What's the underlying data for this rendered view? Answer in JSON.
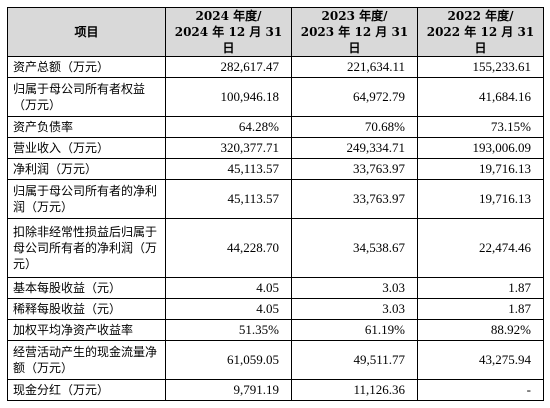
{
  "table": {
    "header": {
      "item": "项目",
      "col1_line1": "2024 年度/",
      "col1_line2": "2024 年 12 月 31 日",
      "col2_line1": "2023 年度/",
      "col2_line2": "2023 年 12 月 31 日",
      "col3_line1": "2022 年度/",
      "col3_line2": "2022 年 12 月 31 日"
    },
    "rows": [
      {
        "label": "资产总额（万元）",
        "v2024": "282,617.47",
        "v2023": "221,634.11",
        "v2022": "155,233.61"
      },
      {
        "label": "归属于母公司所有者权益（万元）",
        "v2024": "100,946.18",
        "v2023": "64,972.79",
        "v2022": "41,684.16"
      },
      {
        "label": "资产负债率",
        "v2024": "64.28%",
        "v2023": "70.68%",
        "v2022": "73.15%"
      },
      {
        "label": "营业收入（万元）",
        "v2024": "320,377.71",
        "v2023": "249,334.71",
        "v2022": "193,006.09"
      },
      {
        "label": "净利润（万元）",
        "v2024": "45,113.57",
        "v2023": "33,763.97",
        "v2022": "19,716.13"
      },
      {
        "label": "归属于母公司所有者的净利润（万元）",
        "v2024": "45,113.57",
        "v2023": "33,763.97",
        "v2022": "19,716.13"
      },
      {
        "label": "扣除非经常性损益后归属于母公司所有者的净利润（万元）",
        "v2024": "44,228.70",
        "v2023": "34,538.67",
        "v2022": "22,474.46"
      },
      {
        "label": "基本每股收益（元）",
        "v2024": "4.05",
        "v2023": "3.03",
        "v2022": "1.87"
      },
      {
        "label": "稀释每股收益（元）",
        "v2024": "4.05",
        "v2023": "3.03",
        "v2022": "1.87"
      },
      {
        "label": "加权平均净资产收益率",
        "v2024": "51.35%",
        "v2023": "61.19%",
        "v2022": "88.92%"
      },
      {
        "label": "经营活动产生的现金流量净额（万元）",
        "v2024": "61,059.05",
        "v2023": "49,511.77",
        "v2022": "43,275.94"
      },
      {
        "label": "现金分红（万元）",
        "v2024": "9,791.19",
        "v2023": "11,126.36",
        "v2022": "-"
      }
    ]
  }
}
